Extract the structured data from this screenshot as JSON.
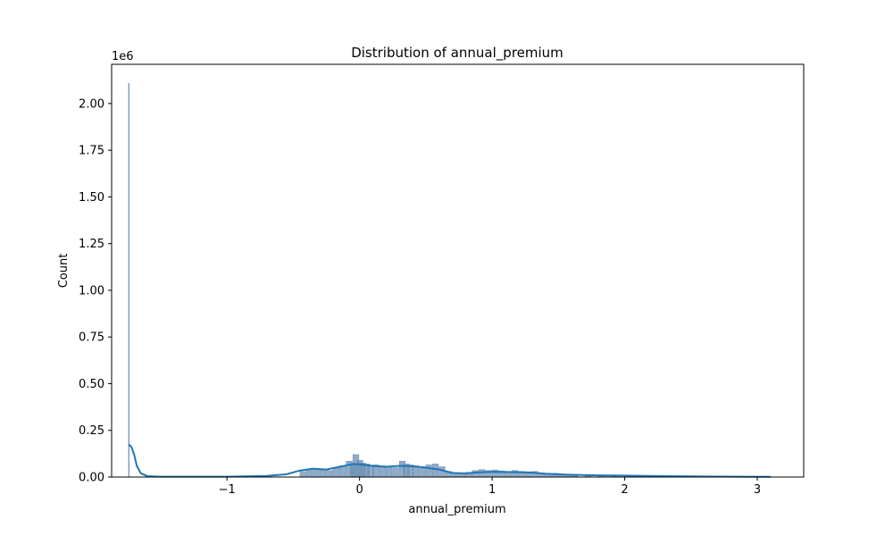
{
  "chart_data": {
    "type": "histogram",
    "title": "Distribution of annual_premium",
    "xlabel": "annual_premium",
    "ylabel": "Count",
    "y_offset_text": "1e6",
    "xlim": [
      -1.87,
      3.35
    ],
    "ylim": [
      0,
      2.21
    ],
    "xticks": [
      -1,
      0,
      1,
      2,
      3
    ],
    "xtick_labels": [
      "−1",
      "0",
      "1",
      "2",
      "3"
    ],
    "yticks": [
      0,
      0.25,
      0.5,
      0.75,
      1.0,
      1.25,
      1.5,
      1.75,
      2.0
    ],
    "ytick_labels": [
      "0.00",
      "0.25",
      "0.50",
      "0.75",
      "1.00",
      "1.25",
      "1.50",
      "1.75",
      "2.00"
    ],
    "grid": false,
    "colors": {
      "bars": "#6b8fb5",
      "kde": "#1f77b4"
    },
    "spike": {
      "x": -1.74,
      "count": 2.11
    },
    "bins": [
      [
        -0.45,
        0.03
      ],
      [
        -0.4,
        0.04
      ],
      [
        -0.35,
        0.045
      ],
      [
        -0.3,
        0.04
      ],
      [
        -0.25,
        0.035
      ],
      [
        -0.2,
        0.05
      ],
      [
        -0.15,
        0.06
      ],
      [
        -0.1,
        0.085
      ],
      [
        -0.07,
        0.07
      ],
      [
        -0.05,
        0.12
      ],
      [
        -0.02,
        0.09
      ],
      [
        0.0,
        0.075
      ],
      [
        0.03,
        0.07
      ],
      [
        0.06,
        0.06
      ],
      [
        0.1,
        0.065
      ],
      [
        0.15,
        0.06
      ],
      [
        0.2,
        0.055
      ],
      [
        0.25,
        0.05
      ],
      [
        0.3,
        0.085
      ],
      [
        0.33,
        0.07
      ],
      [
        0.36,
        0.065
      ],
      [
        0.4,
        0.06
      ],
      [
        0.45,
        0.055
      ],
      [
        0.5,
        0.065
      ],
      [
        0.55,
        0.07
      ],
      [
        0.6,
        0.055
      ],
      [
        0.65,
        0.03
      ],
      [
        0.7,
        0.02
      ],
      [
        0.75,
        0.018
      ],
      [
        0.8,
        0.025
      ],
      [
        0.85,
        0.035
      ],
      [
        0.9,
        0.04
      ],
      [
        0.95,
        0.035
      ],
      [
        1.0,
        0.038
      ],
      [
        1.05,
        0.033
      ],
      [
        1.1,
        0.03
      ],
      [
        1.15,
        0.035
      ],
      [
        1.2,
        0.03
      ],
      [
        1.25,
        0.028
      ],
      [
        1.3,
        0.03
      ],
      [
        1.35,
        0.022
      ],
      [
        1.4,
        0.018
      ],
      [
        1.45,
        0.02
      ],
      [
        1.5,
        0.016
      ],
      [
        1.55,
        0.014
      ],
      [
        1.6,
        0.012
      ],
      [
        1.7,
        0.01
      ],
      [
        1.8,
        0.009
      ],
      [
        1.9,
        0.008
      ],
      [
        2.0,
        0.007
      ],
      [
        2.2,
        0.006
      ],
      [
        2.4,
        0.005
      ],
      [
        2.6,
        0.004
      ],
      [
        2.8,
        0.003
      ],
      [
        3.0,
        0.003
      ]
    ],
    "kde": {
      "x": [
        -1.74,
        -1.72,
        -1.7,
        -1.68,
        -1.65,
        -1.6,
        -1.5,
        -1.0,
        -0.7,
        -0.55,
        -0.45,
        -0.35,
        -0.25,
        -0.15,
        -0.05,
        0.0,
        0.1,
        0.2,
        0.3,
        0.4,
        0.5,
        0.6,
        0.7,
        0.8,
        0.9,
        1.0,
        1.1,
        1.2,
        1.3,
        1.4,
        1.6,
        1.8,
        2.0,
        2.3,
        2.6,
        2.9,
        3.1
      ],
      "y": [
        0.175,
        0.16,
        0.12,
        0.06,
        0.02,
        0.005,
        0.002,
        0.002,
        0.006,
        0.015,
        0.035,
        0.045,
        0.04,
        0.055,
        0.07,
        0.068,
        0.06,
        0.055,
        0.06,
        0.058,
        0.05,
        0.04,
        0.022,
        0.02,
        0.025,
        0.028,
        0.027,
        0.026,
        0.024,
        0.018,
        0.012,
        0.009,
        0.008,
        0.005,
        0.003,
        0.002,
        0.001
      ]
    }
  }
}
